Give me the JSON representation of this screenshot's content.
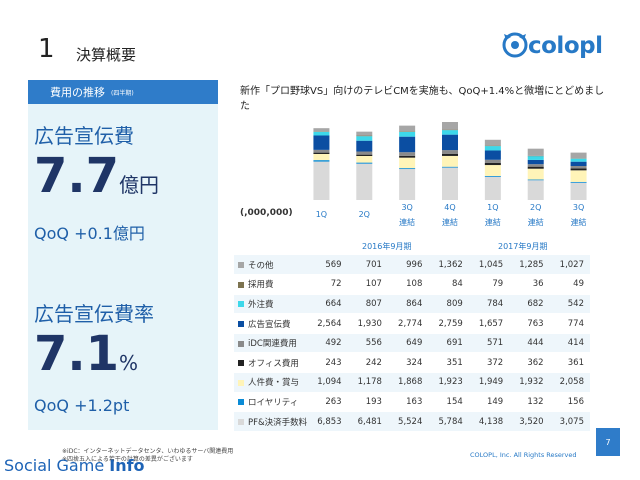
{
  "header": {
    "number": "1",
    "title": "決算概要"
  },
  "logo": {
    "text": "colopl",
    "brand_color": "#2779c6"
  },
  "left_panel": {
    "header": "費用の推移",
    "header_note": "(四半期)",
    "metric1": {
      "label": "広告宣伝費",
      "value": "7.7",
      "unit": "億円",
      "qoq": "QoQ +0.1億円"
    },
    "metric2": {
      "label": "広告宣伝費率",
      "value": "7.1",
      "unit": "%",
      "qoq": "QoQ +1.2pt"
    }
  },
  "description": "新作「プロ野球VS」向けのテレビCMを実施も、QoQ+1.4%と微増にとどめました",
  "unit_label": "(,000,000)",
  "periods": [
    "2016年9月期",
    "2017年9月期"
  ],
  "chart_data": {
    "type": "bar",
    "stacked": true,
    "categories": [
      "1Q",
      "2Q",
      "3Q\n連結",
      "4Q\n連結",
      "1Q\n連結",
      "2Q\n連結",
      "3Q\n連結"
    ],
    "category_lines": [
      [
        "1Q"
      ],
      [
        "2Q"
      ],
      [
        "3Q",
        "連結"
      ],
      [
        "4Q",
        "連結"
      ],
      [
        "1Q",
        "連結"
      ],
      [
        "2Q",
        "連結"
      ],
      [
        "3Q",
        "連結"
      ]
    ],
    "series": [
      {
        "name": "PF&決済手数料",
        "color": "#d9d9d9",
        "values": [
          6853,
          6481,
          5524,
          5784,
          4138,
          3520,
          3075
        ]
      },
      {
        "name": "ロイヤリティ",
        "color": "#0a8bd6",
        "values": [
          263,
          193,
          163,
          154,
          149,
          132,
          156
        ]
      },
      {
        "name": "人件費・賞与",
        "color": "#fff4b8",
        "values": [
          1094,
          1178,
          1868,
          1923,
          1949,
          1932,
          2058
        ]
      },
      {
        "name": "オフィス費用",
        "color": "#222222",
        "values": [
          243,
          242,
          324,
          351,
          372,
          362,
          361
        ]
      },
      {
        "name": "iDC関連費用",
        "color": "#8a8a8a",
        "values": [
          492,
          556,
          649,
          691,
          571,
          444,
          414
        ]
      },
      {
        "name": "広告宣伝費",
        "color": "#0b4ea2",
        "values": [
          2564,
          1930,
          2774,
          2759,
          1657,
          763,
          774
        ]
      },
      {
        "name": "外注費",
        "color": "#3dd8ea",
        "values": [
          664,
          807,
          864,
          809,
          784,
          682,
          542
        ]
      },
      {
        "name": "採用費",
        "color": "#7d7350",
        "values": [
          72,
          107,
          108,
          84,
          79,
          36,
          49
        ]
      },
      {
        "name": "その他",
        "color": "#a6a6a6",
        "values": [
          569,
          701,
          996,
          1362,
          1045,
          1285,
          1027
        ]
      }
    ]
  },
  "table_rows": [
    {
      "label": "その他",
      "color": "#a6a6a6",
      "values": [
        "569",
        "701",
        "996",
        "1,362",
        "1,045",
        "1,285",
        "1,027"
      ]
    },
    {
      "label": "採用費",
      "color": "#7d7350",
      "values": [
        "72",
        "107",
        "108",
        "84",
        "79",
        "36",
        "49"
      ]
    },
    {
      "label": "外注費",
      "color": "#3dd8ea",
      "values": [
        "664",
        "807",
        "864",
        "809",
        "784",
        "682",
        "542"
      ]
    },
    {
      "label": "広告宣伝費",
      "color": "#0b4ea2",
      "values": [
        "2,564",
        "1,930",
        "2,774",
        "2,759",
        "1,657",
        "763",
        "774"
      ]
    },
    {
      "label": "iDC関連費用",
      "color": "#8a8a8a",
      "values": [
        "492",
        "556",
        "649",
        "691",
        "571",
        "444",
        "414"
      ]
    },
    {
      "label": "オフィス費用",
      "color": "#222222",
      "values": [
        "243",
        "242",
        "324",
        "351",
        "372",
        "362",
        "361"
      ]
    },
    {
      "label": "人件費・賞与",
      "color": "#fff4b8",
      "values": [
        "1,094",
        "1,178",
        "1,868",
        "1,923",
        "1,949",
        "1,932",
        "2,058"
      ]
    },
    {
      "label": "ロイヤリティ",
      "color": "#0a8bd6",
      "values": [
        "263",
        "193",
        "163",
        "154",
        "149",
        "132",
        "156"
      ]
    },
    {
      "label": "PF&決済手数料",
      "color": "#d9d9d9",
      "values": [
        "6,853",
        "6,481",
        "5,524",
        "5,784",
        "4,138",
        "3,520",
        "3,075"
      ]
    }
  ],
  "footnotes": [
    "※iDC：インターネットデータセンタ、いわゆるサーバ関連費用",
    "※四捨五入による若干の計算の差異がございます"
  ],
  "copyright": "COLOPL, Inc. All Rights Reserved",
  "page_number": "7",
  "watermark": {
    "part1": "Social Game ",
    "part2": "Info"
  }
}
